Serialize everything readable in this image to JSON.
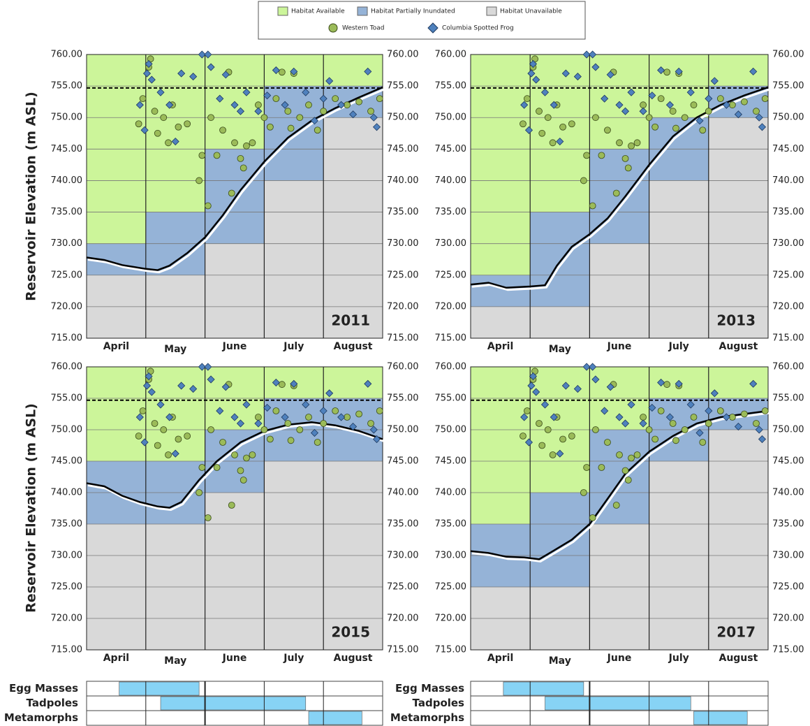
{
  "chart_data": [
    {
      "type": "scatter",
      "title": "2011",
      "categories": [
        "April",
        "May",
        "June",
        "July",
        "August"
      ],
      "xlim": [
        0,
        5
      ],
      "ylim": [
        715,
        760
      ],
      "yticks": [
        {
          "value": 715,
          "label": "715.00"
        },
        {
          "value": 720,
          "label": "720.00"
        },
        {
          "value": 725,
          "label": "725.00"
        },
        {
          "value": 730,
          "label": "730.00"
        },
        {
          "value": 735,
          "label": "735.00"
        },
        {
          "value": 740,
          "label": "740.00"
        },
        {
          "value": 745,
          "label": "745.00"
        },
        {
          "value": 750,
          "label": "750.00"
        },
        {
          "value": 755,
          "label": "755.00"
        },
        {
          "value": 760,
          "label": "760.00"
        }
      ],
      "habitat_available_from": [
        730,
        735,
        745,
        755,
        755
      ],
      "habitat_unavailable_below": [
        725,
        725,
        730,
        740,
        750
      ],
      "reservoir": {
        "x": [
          0,
          0.3,
          0.6,
          1,
          1.2,
          1.4,
          1.7,
          2,
          2.3,
          2.6,
          3,
          3.4,
          3.8,
          4.2,
          4.6,
          5
        ],
        "values": [
          727.8,
          727.4,
          726.6,
          726,
          725.8,
          726.5,
          728.5,
          731,
          734.5,
          738.5,
          743,
          746.8,
          749.5,
          751.5,
          753.2,
          754.8
        ]
      }
    },
    {
      "type": "scatter",
      "title": "2013",
      "categories": [
        "April",
        "May",
        "June",
        "July",
        "August"
      ],
      "xlim": [
        0,
        5
      ],
      "ylim": [
        715,
        760
      ],
      "yticks": [
        {
          "value": 715,
          "label": "715.00"
        },
        {
          "value": 720,
          "label": "720.00"
        },
        {
          "value": 725,
          "label": "725.00"
        },
        {
          "value": 730,
          "label": "730.00"
        },
        {
          "value": 735,
          "label": "735.00"
        },
        {
          "value": 740,
          "label": "740.00"
        },
        {
          "value": 745,
          "label": "745.00"
        },
        {
          "value": 750,
          "label": "750.00"
        },
        {
          "value": 755,
          "label": "755.00"
        },
        {
          "value": 760,
          "label": "760.00"
        }
      ],
      "habitat_available_from": [
        725,
        735,
        745,
        750,
        755
      ],
      "habitat_unavailable_below": [
        720,
        720,
        730,
        740,
        750
      ],
      "reservoir": {
        "x": [
          0,
          0.3,
          0.6,
          1,
          1.25,
          1.45,
          1.7,
          2,
          2.3,
          2.6,
          3,
          3.4,
          3.8,
          4.2,
          4.6,
          5
        ],
        "values": [
          723.5,
          723.8,
          723,
          723.2,
          723.4,
          726.5,
          729.5,
          731.5,
          734,
          737.5,
          742.5,
          747,
          750,
          752,
          753.5,
          754.8
        ]
      }
    },
    {
      "type": "scatter",
      "title": "2015",
      "categories": [
        "April",
        "May",
        "June",
        "July",
        "August"
      ],
      "xlim": [
        0,
        5
      ],
      "ylim": [
        715,
        760
      ],
      "yticks": [
        {
          "value": 715,
          "label": "715.00"
        },
        {
          "value": 720,
          "label": "720.00"
        },
        {
          "value": 725,
          "label": "725.00"
        },
        {
          "value": 730,
          "label": "730.00"
        },
        {
          "value": 735,
          "label": "735.00"
        },
        {
          "value": 740,
          "label": "740.00"
        },
        {
          "value": 745,
          "label": "745.00"
        },
        {
          "value": 750,
          "label": "750.00"
        },
        {
          "value": 755,
          "label": "755.00"
        },
        {
          "value": 760,
          "label": "760.00"
        }
      ],
      "habitat_available_from": [
        745,
        745,
        750,
        755,
        755
      ],
      "habitat_unavailable_below": [
        735,
        735,
        740,
        745,
        745
      ],
      "reservoir": {
        "x": [
          0,
          0.3,
          0.6,
          0.9,
          1.2,
          1.4,
          1.6,
          1.9,
          2.2,
          2.6,
          3,
          3.4,
          3.8,
          4.2,
          4.6,
          5
        ],
        "values": [
          741.5,
          741,
          739.5,
          738.5,
          737.8,
          737.6,
          738.5,
          742,
          745,
          748,
          749.8,
          750.8,
          751.2,
          750.7,
          749.8,
          748.5
        ]
      }
    },
    {
      "type": "scatter",
      "title": "2017",
      "categories": [
        "April",
        "May",
        "June",
        "July",
        "August"
      ],
      "xlim": [
        0,
        5
      ],
      "ylim": [
        715,
        760
      ],
      "yticks": [
        {
          "value": 715,
          "label": "715.00"
        },
        {
          "value": 720,
          "label": "720.00"
        },
        {
          "value": 725,
          "label": "725.00"
        },
        {
          "value": 730,
          "label": "730.00"
        },
        {
          "value": 735,
          "label": "735.00"
        },
        {
          "value": 740,
          "label": "740.00"
        },
        {
          "value": 745,
          "label": "745.00"
        },
        {
          "value": 750,
          "label": "750.00"
        },
        {
          "value": 755,
          "label": "755.00"
        },
        {
          "value": 760,
          "label": "760.00"
        }
      ],
      "habitat_available_from": [
        735,
        740,
        750,
        755,
        755
      ],
      "habitat_unavailable_below": [
        725,
        725,
        735,
        745,
        750
      ],
      "reservoir": {
        "x": [
          0,
          0.3,
          0.6,
          0.9,
          1.15,
          1.4,
          1.7,
          2,
          2.3,
          2.6,
          3,
          3.4,
          3.8,
          4.2,
          4.6,
          5
        ],
        "values": [
          730.7,
          730.4,
          729.8,
          729.7,
          729.4,
          730.8,
          732.5,
          735,
          739,
          743,
          746.5,
          749,
          751,
          752,
          752.5,
          753
        ]
      }
    }
  ],
  "y_label": "Reservoir Elevation (m ASL)",
  "reference_elevation": 754.7,
  "habitat_legend": [
    {
      "name": "Habitat Available",
      "color": "#ccf59a"
    },
    {
      "name": "Habitat Partially Inundated",
      "color": "#95b3d7"
    },
    {
      "name": "Habitat Unavailable",
      "color": "#d9d9d9"
    }
  ],
  "observations": {
    "series": [
      {
        "name": "Western Toad",
        "color": "#9bbb59",
        "x": [
          0.88,
          0.95,
          1.05,
          1.08,
          1.15,
          1.2,
          1.3,
          1.38,
          1.45,
          1.55,
          1.7,
          1.9,
          1.95,
          2.05,
          2.1,
          2.2,
          2.3,
          2.4,
          2.5,
          2.6,
          2.65,
          2.7,
          2.8,
          2.9,
          3.0,
          3.1,
          3.2,
          3.3,
          3.4,
          3.5,
          3.6,
          3.75,
          3.9,
          4.0,
          4.2,
          4.4,
          4.6,
          4.8,
          4.95,
          3.45,
          2.45
        ],
        "values": [
          749,
          753,
          758,
          759.3,
          751,
          747.5,
          750,
          746,
          752,
          748.5,
          749,
          740,
          744,
          736,
          750,
          744,
          748,
          757.2,
          746,
          743.5,
          742,
          745.5,
          746,
          752,
          750,
          748.5,
          753,
          757.2,
          751,
          757,
          750,
          752,
          748,
          751,
          753,
          752,
          752.5,
          751,
          753,
          748.3,
          738
        ]
      },
      {
        "name": "Columbia Spotted Frog",
        "color": "#4f81bd",
        "x": [
          0.9,
          0.98,
          1.02,
          1.05,
          1.1,
          1.25,
          1.4,
          1.6,
          1.8,
          1.95,
          2.05,
          2.1,
          2.25,
          2.35,
          2.5,
          2.7,
          2.9,
          3.05,
          3.2,
          3.35,
          3.5,
          3.7,
          3.85,
          4.0,
          4.1,
          4.3,
          4.5,
          4.75,
          4.85,
          4.9,
          1.5,
          2.6
        ],
        "values": [
          752,
          748,
          757,
          758.5,
          756,
          754,
          752,
          757,
          756.5,
          760,
          760,
          758,
          753,
          756.8,
          752,
          754,
          751,
          753.5,
          757.5,
          752,
          757.3,
          754,
          749.5,
          753,
          755.8,
          752,
          750.5,
          757.3,
          750,
          748.5,
          746.2,
          751
        ]
      }
    ]
  },
  "life_stages": {
    "categories": [
      "Egg Masses",
      "Tadpoles",
      "Metamorphs"
    ],
    "start": [
      0.55,
      1.25,
      3.75
    ],
    "end": [
      1.9,
      3.7,
      4.65
    ],
    "color": "#87d3f5"
  }
}
